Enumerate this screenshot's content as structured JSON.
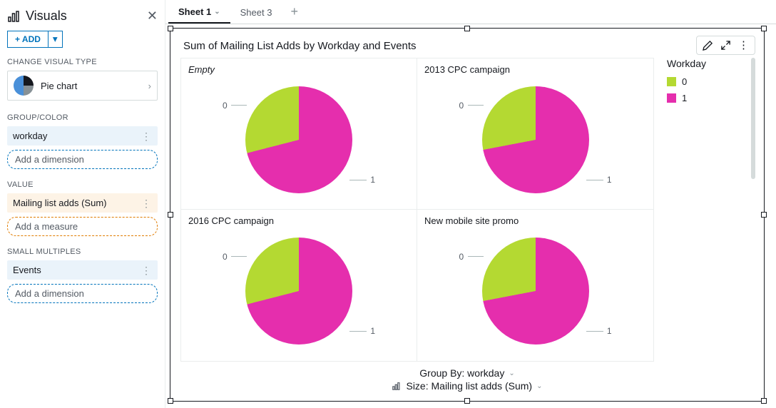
{
  "sidebar": {
    "title": "Visuals",
    "add_button": "+ ADD",
    "change_type_label": "CHANGE VISUAL TYPE",
    "visual_type": "Pie chart",
    "groups": {
      "group_color": {
        "label": "GROUP/COLOR",
        "pill": "workday",
        "add": "Add a dimension"
      },
      "value": {
        "label": "VALUE",
        "pill": "Mailing list adds (Sum)",
        "add": "Add a measure"
      },
      "small_multiples": {
        "label": "SMALL MULTIPLES",
        "pill": "Events",
        "add": "Add a dimension"
      }
    }
  },
  "tabs": {
    "active": "Sheet 1",
    "inactive": "Sheet 3"
  },
  "chart": {
    "title": "Sum of Mailing List Adds by Workday and Events",
    "legend_title": "Workday",
    "legend": [
      {
        "label": "0",
        "color": "#b4d932"
      },
      {
        "label": "1",
        "color": "#e52ead"
      }
    ],
    "colors": {
      "slice0": "#b4d932",
      "slice1": "#e52ead"
    },
    "cells": [
      {
        "title": "Empty",
        "italic": true,
        "pct0": 29,
        "pct1": 71
      },
      {
        "title": "2013 CPC campaign",
        "italic": false,
        "pct0": 28,
        "pct1": 72
      },
      {
        "title": "2016 CPC campaign",
        "italic": false,
        "pct0": 29,
        "pct1": 71
      },
      {
        "title": "New mobile site promo",
        "italic": false,
        "pct0": 28,
        "pct1": 72
      }
    ],
    "footer": {
      "group_by": "Group By: workday",
      "size": "Size: Mailing list adds (Sum)"
    }
  }
}
